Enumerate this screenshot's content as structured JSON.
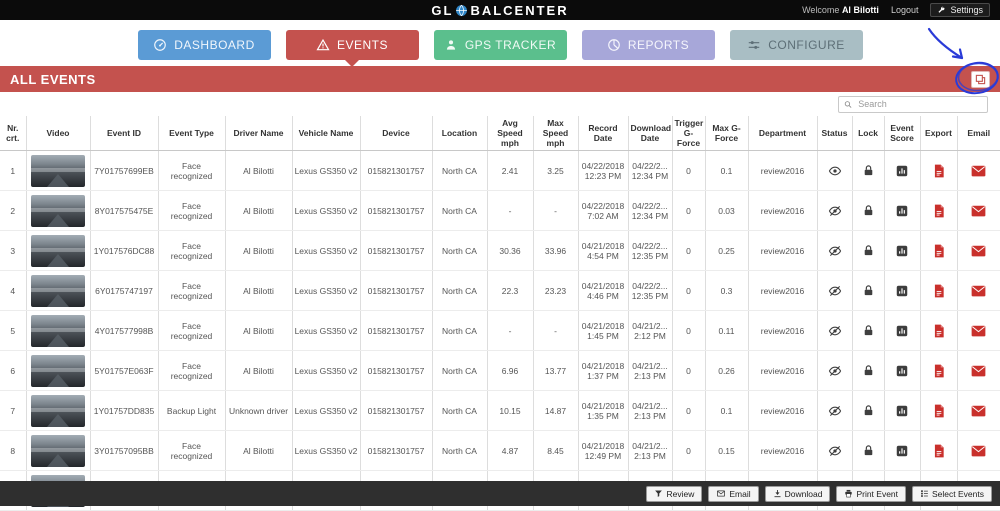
{
  "topbar": {
    "logo_left": "GL",
    "logo_right": "BALCENTER",
    "welcome_label": "Welcome",
    "user_name": "Al Bilotti",
    "logout_label": "Logout",
    "settings_label": "Settings"
  },
  "nav": {
    "tabs": [
      {
        "label": "DASHBOARD",
        "color": "#5b9bd5",
        "text_color": "#f0f6fc",
        "active": false
      },
      {
        "label": "EVENTS",
        "color": "#c4524e",
        "text_color": "#ffffff",
        "active": true
      },
      {
        "label": "GPS TRACKER",
        "color": "#5bbf8d",
        "text_color": "#f0faf5",
        "active": false
      },
      {
        "label": "REPORTS",
        "color": "#a7a7d9",
        "text_color": "#f5f5fc",
        "active": false
      },
      {
        "label": "CONFIGURE",
        "color": "#a9bec4",
        "text_color": "#5d6f77",
        "active": false
      }
    ]
  },
  "section": {
    "title": "ALL EVENTS",
    "color": "#c4524e"
  },
  "search": {
    "placeholder": "Search"
  },
  "table": {
    "headers": [
      "Nr. crt.",
      "Video",
      "Event ID",
      "Event Type",
      "Driver Name",
      "Vehicle Name",
      "Device",
      "Location",
      "Avg Speed mph",
      "Max Speed mph",
      "Record Date",
      "Download Date",
      "Trigger G-Force",
      "Max G-Force",
      "Department",
      "Status",
      "Lock",
      "Event Score",
      "Export",
      "Email"
    ],
    "rows": [
      {
        "nr": "1",
        "event_id": "7Y01757699EB",
        "event_type": "Face recognized",
        "driver_name": "Al Bilotti",
        "vehicle_name": "Lexus GS350 v2",
        "device": "015821301757",
        "location": "North CA",
        "avg_speed": "2.41",
        "max_speed": "3.25",
        "record_date": "04/22/2018",
        "record_time": "12:23 PM",
        "download_date": "04/22/2...",
        "download_time": "12:34 PM",
        "trigger_g_force": "0",
        "max_g_force": "0.1",
        "department": "review2016",
        "status": "visible"
      },
      {
        "nr": "2",
        "event_id": "8Y017575475E",
        "event_type": "Face recognized",
        "driver_name": "Al Bilotti",
        "vehicle_name": "Lexus GS350 v2",
        "device": "015821301757",
        "location": "North CA",
        "avg_speed": "-",
        "max_speed": "-",
        "record_date": "04/22/2018",
        "record_time": "7:02 AM",
        "download_date": "04/22/2...",
        "download_time": "12:34 PM",
        "trigger_g_force": "0",
        "max_g_force": "0.03",
        "department": "review2016",
        "status": "hidden"
      },
      {
        "nr": "3",
        "event_id": "1Y017576DC88",
        "event_type": "Face recognized",
        "driver_name": "Al Bilotti",
        "vehicle_name": "Lexus GS350 v2",
        "device": "015821301757",
        "location": "North CA",
        "avg_speed": "30.36",
        "max_speed": "33.96",
        "record_date": "04/21/2018",
        "record_time": "4:54 PM",
        "download_date": "04/22/2...",
        "download_time": "12:35 PM",
        "trigger_g_force": "0",
        "max_g_force": "0.25",
        "department": "review2016",
        "status": "hidden"
      },
      {
        "nr": "4",
        "event_id": "6Y0175747197",
        "event_type": "Face recognized",
        "driver_name": "Al Bilotti",
        "vehicle_name": "Lexus GS350 v2",
        "device": "015821301757",
        "location": "North CA",
        "avg_speed": "22.3",
        "max_speed": "23.23",
        "record_date": "04/21/2018",
        "record_time": "4:46 PM",
        "download_date": "04/22/2...",
        "download_time": "12:35 PM",
        "trigger_g_force": "0",
        "max_g_force": "0.3",
        "department": "review2016",
        "status": "hidden"
      },
      {
        "nr": "5",
        "event_id": "4Y017577998B",
        "event_type": "Face recognized",
        "driver_name": "Al Bilotti",
        "vehicle_name": "Lexus GS350 v2",
        "device": "015821301757",
        "location": "North CA",
        "avg_speed": "-",
        "max_speed": "-",
        "record_date": "04/21/2018",
        "record_time": "1:45 PM",
        "download_date": "04/21/2...",
        "download_time": "2:12 PM",
        "trigger_g_force": "0",
        "max_g_force": "0.11",
        "department": "review2016",
        "status": "hidden"
      },
      {
        "nr": "6",
        "event_id": "5Y01757E063F",
        "event_type": "Face recognized",
        "driver_name": "Al Bilotti",
        "vehicle_name": "Lexus GS350 v2",
        "device": "015821301757",
        "location": "North CA",
        "avg_speed": "6.96",
        "max_speed": "13.77",
        "record_date": "04/21/2018",
        "record_time": "1:37 PM",
        "download_date": "04/21/2...",
        "download_time": "2:13 PM",
        "trigger_g_force": "0",
        "max_g_force": "0.26",
        "department": "review2016",
        "status": "hidden"
      },
      {
        "nr": "7",
        "event_id": "1Y01757DD835",
        "event_type": "Backup Light",
        "driver_name": "Unknown driver",
        "vehicle_name": "Lexus GS350 v2",
        "device": "015821301757",
        "location": "North CA",
        "avg_speed": "10.15",
        "max_speed": "14.87",
        "record_date": "04/21/2018",
        "record_time": "1:35 PM",
        "download_date": "04/21/2...",
        "download_time": "2:13 PM",
        "trigger_g_force": "0",
        "max_g_force": "0.1",
        "department": "review2016",
        "status": "hidden"
      },
      {
        "nr": "8",
        "event_id": "3Y01757095BB",
        "event_type": "Face recognized",
        "driver_name": "Al Bilotti",
        "vehicle_name": "Lexus GS350 v2",
        "device": "015821301757",
        "location": "North CA",
        "avg_speed": "4.87",
        "max_speed": "8.45",
        "record_date": "04/21/2018",
        "record_time": "12:49 PM",
        "download_date": "04/21/2...",
        "download_time": "2:13 PM",
        "trigger_g_force": "0",
        "max_g_force": "0.15",
        "department": "review2016",
        "status": "hidden"
      },
      {
        "nr": "",
        "event_id": "",
        "event_type": "",
        "driver_name": "",
        "vehicle_name": "",
        "device": "",
        "location": "",
        "avg_speed": "",
        "max_speed": "",
        "record_date": "",
        "record_time": "",
        "download_date": "",
        "download_time": "",
        "trigger_g_force": "",
        "max_g_force": "",
        "department": "",
        "status": "none",
        "partial": true
      }
    ]
  },
  "footer": {
    "buttons": [
      {
        "label": "Review"
      },
      {
        "label": "Email"
      },
      {
        "label": "Download"
      },
      {
        "label": "Print Event"
      },
      {
        "label": "Select Events"
      }
    ]
  }
}
